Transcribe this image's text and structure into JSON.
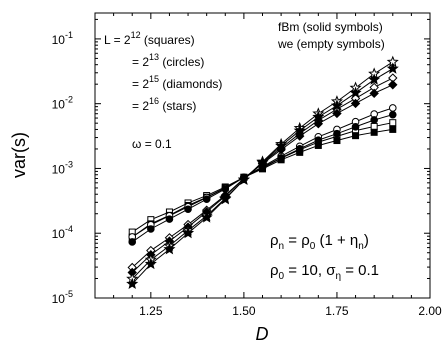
{
  "chart_data": {
    "type": "line",
    "xlabel": "D",
    "ylabel": "var(s)",
    "xlim": [
      1.1,
      2.0
    ],
    "ylim_log10": [
      -5,
      -0.6
    ],
    "y_scale": "log",
    "x_ticks": [
      1.25,
      1.5,
      1.75,
      2.0
    ],
    "x_tick_labels": [
      "1.25",
      "1.50",
      "1.75",
      "2.00"
    ],
    "y_ticks": [
      -5,
      -4,
      -3,
      -2,
      -1
    ],
    "y_tick_labels": [
      {
        "base": "10",
        "exp": "-5"
      },
      {
        "base": "10",
        "exp": "-4"
      },
      {
        "base": "10",
        "exp": "-3"
      },
      {
        "base": "10",
        "exp": "-2"
      },
      {
        "base": "10",
        "exp": "-1"
      }
    ],
    "x": [
      1.2,
      1.25,
      1.3,
      1.35,
      1.4,
      1.45,
      1.5,
      1.55,
      1.6,
      1.65,
      1.7,
      1.75,
      1.8,
      1.85,
      1.9
    ],
    "series": [
      {
        "marker": "square",
        "values": [
          9.5e-05,
          0.00015,
          0.0002,
          0.00028,
          0.00037,
          0.00051,
          0.00073,
          0.001,
          0.0014,
          0.00185,
          0.0024,
          0.0029,
          0.0035,
          0.004,
          0.0045
        ]
      },
      {
        "marker": "circle",
        "values": [
          8e-05,
          0.000125,
          0.000175,
          0.000245,
          0.000345,
          0.00049,
          0.00073,
          0.00105,
          0.0015,
          0.0021,
          0.0029,
          0.0037,
          0.0048,
          0.0062,
          0.0076
        ]
      },
      {
        "marker": "diamond",
        "values": [
          2.7e-05,
          5e-05,
          8e-05,
          0.00013,
          0.00022,
          0.00038,
          0.0007,
          0.0012,
          0.002,
          0.0033,
          0.0052,
          0.0076,
          0.011,
          0.016,
          0.022
        ]
      },
      {
        "marker": "star",
        "values": [
          1.8e-05,
          3.6e-05,
          6e-05,
          0.000105,
          0.00018,
          0.00034,
          0.00067,
          0.00125,
          0.0023,
          0.004,
          0.0066,
          0.01,
          0.016,
          0.026,
          0.039
        ]
      }
    ],
    "legend_L": [
      {
        "prefix": "L = 2",
        "exp": "12",
        "desc": " (squares)"
      },
      {
        "prefix": "= 2",
        "exp": "13",
        "desc": " (circles)"
      },
      {
        "prefix": "= 2",
        "exp": "15",
        "desc": " (diamonds)"
      },
      {
        "prefix": "= 2",
        "exp": "16",
        "desc": " (stars)"
      }
    ],
    "omega_label": "ω = 0.1",
    "fbm_label": "fBm (solid symbols)",
    "we_label": "we   (empty symbols)",
    "formula_rho": {
      "lhs": "ρ",
      "lhs_sub": "n",
      "eq": " = ",
      "rhs": "ρ",
      "rhs_sub": "0",
      "rest": " (1 + η",
      "rest_sub": "n",
      "close": ")"
    },
    "formula_params": {
      "a": "ρ",
      "a_sub": "0",
      "a_val": " = 10, σ",
      "b_sub": "η",
      "b_val": " = 0.1"
    }
  }
}
